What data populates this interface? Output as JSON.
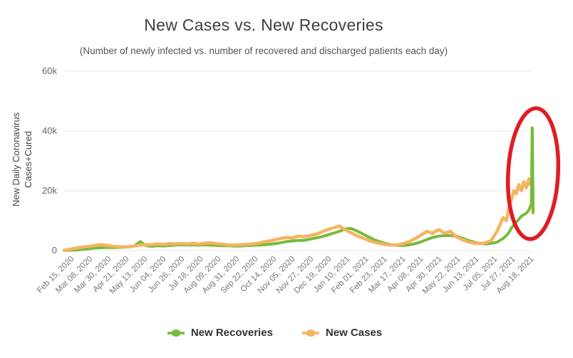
{
  "header": {
    "title": "New Cases vs. New Recoveries",
    "subtitle": "(Number of newly infected vs. number of recovered and discharged patients each day)"
  },
  "y_axis": {
    "title_lines": [
      "New Daily Coronavirus",
      "Cases+Cured"
    ],
    "tick_labels": [
      "60k",
      "40k",
      "20k",
      "0"
    ],
    "tick_values": [
      60000,
      40000,
      20000,
      0
    ]
  },
  "x_axis": {
    "tick_labels": [
      "Feb 15, 2020",
      "Mar 08, 2020",
      "Mar 30, 2020",
      "Apr 21, 2020",
      "May 13, 2020",
      "Jun 04, 2020",
      "Jun 26, 2020",
      "Jul 18, 2020",
      "Aug 09, 2020",
      "Aug 31, 2020",
      "Sep 22, 2020",
      "Oct 14, 2020",
      "Nov 05, 2020",
      "Nov 27, 2020",
      "Dec 19, 2020",
      "Jan 10, 2021",
      "Feb 01, 2021",
      "Feb 23, 2021",
      "Mar 17, 2021",
      "Apr 08, 2021",
      "Apr 30, 2021",
      "May 22, 2021",
      "Jun 13, 2021",
      "Jul 05, 2021",
      "Jul 27, 2021",
      "Aug 18, 2021"
    ]
  },
  "legend": {
    "items": [
      {
        "label": "New Recoveries",
        "color": "#77bb3a"
      },
      {
        "label": "New Cases",
        "color": "#f4b45f"
      }
    ]
  },
  "annotation": {
    "type": "ellipse",
    "color": "#e01c24",
    "highlights": "Sharp end-of-August 2021 surge: cases near 24k and a one-day recoveries spike to about 41k"
  },
  "colors": {
    "recoveries": "#77bb3a",
    "cases": "#f4b45f",
    "grid": "#e6e6e6",
    "annotation_red": "#e01c24"
  },
  "chart_data": {
    "type": "line",
    "title": "New Cases vs. New Recoveries",
    "subtitle": "(Number of newly infected vs. number of recovered and discharged patients each day)",
    "ylabel": "New Daily Coronavirus Cases+Cured",
    "xlabel": "",
    "ylim": [
      0,
      60000
    ],
    "grid": true,
    "legend_position": "bottom",
    "x": [
      "2020-02-15",
      "2020-02-22",
      "2020-02-29",
      "2020-03-07",
      "2020-03-14",
      "2020-03-21",
      "2020-03-28",
      "2020-04-04",
      "2020-04-11",
      "2020-04-18",
      "2020-04-25",
      "2020-05-02",
      "2020-05-09",
      "2020-05-16",
      "2020-05-23",
      "2020-05-30",
      "2020-06-06",
      "2020-06-13",
      "2020-06-20",
      "2020-06-27",
      "2020-07-04",
      "2020-07-11",
      "2020-07-18",
      "2020-07-25",
      "2020-08-01",
      "2020-08-08",
      "2020-08-15",
      "2020-08-22",
      "2020-08-29",
      "2020-09-05",
      "2020-09-12",
      "2020-09-19",
      "2020-09-26",
      "2020-10-03",
      "2020-10-10",
      "2020-10-17",
      "2020-10-24",
      "2020-10-31",
      "2020-11-07",
      "2020-11-14",
      "2020-11-21",
      "2020-11-28",
      "2020-12-05",
      "2020-12-12",
      "2020-12-19",
      "2020-12-26",
      "2021-01-02",
      "2021-01-09",
      "2021-01-16",
      "2021-01-23",
      "2021-01-30",
      "2021-02-06",
      "2021-02-13",
      "2021-02-20",
      "2021-02-27",
      "2021-03-06",
      "2021-03-13",
      "2021-03-20",
      "2021-03-27",
      "2021-04-03",
      "2021-04-10",
      "2021-04-17",
      "2021-04-24",
      "2021-05-01",
      "2021-05-08",
      "2021-05-15",
      "2021-05-22",
      "2021-05-29",
      "2021-06-05",
      "2021-06-12",
      "2021-06-19",
      "2021-06-26",
      "2021-07-03",
      "2021-07-10",
      "2021-07-17",
      "2021-07-24",
      "2021-07-28",
      "2021-07-31",
      "2021-08-03",
      "2021-08-06",
      "2021-08-09",
      "2021-08-12",
      "2021-08-15",
      "2021-08-18",
      "2021-08-21",
      "2021-08-24",
      "2021-08-26",
      "2021-08-27",
      "2021-08-28",
      "2021-08-29"
    ],
    "series": [
      {
        "name": "New Recoveries",
        "color": "#77bb3a",
        "values": [
          20,
          100,
          200,
          350,
          500,
          800,
          900,
          1000,
          1000,
          1000,
          1100,
          1200,
          1500,
          3000,
          1600,
          1400,
          1600,
          1500,
          1700,
          1800,
          1900,
          1800,
          1900,
          1800,
          1900,
          1800,
          1700,
          1600,
          1600,
          1500,
          1500,
          1600,
          1700,
          1800,
          1900,
          2100,
          2300,
          2600,
          3000,
          3200,
          3400,
          3400,
          3800,
          4200,
          4600,
          5200,
          5800,
          6400,
          7200,
          7400,
          6600,
          5600,
          4600,
          3600,
          2900,
          2300,
          1900,
          1700,
          1700,
          1900,
          2300,
          2900,
          3700,
          4400,
          4800,
          5000,
          5000,
          4800,
          4200,
          3400,
          2800,
          2400,
          2200,
          2400,
          2800,
          4000,
          5000,
          6000,
          7500,
          8500,
          9500,
          10500,
          11500,
          12000,
          12500,
          13500,
          15000,
          15500,
          41000,
          13000
        ]
      },
      {
        "name": "New Cases",
        "color": "#f4b45f",
        "values": [
          100,
          400,
          800,
          1100,
          1300,
          1600,
          2000,
          1800,
          1500,
          1300,
          1200,
          1300,
          1500,
          1800,
          1900,
          2000,
          2200,
          2000,
          2300,
          2200,
          2300,
          2200,
          2400,
          2200,
          2400,
          2600,
          2300,
          2100,
          1900,
          1800,
          1900,
          2000,
          2200,
          2400,
          2800,
          3200,
          3600,
          4000,
          4400,
          4200,
          4800,
          4600,
          5000,
          5400,
          6200,
          7000,
          7600,
          8200,
          7000,
          6000,
          5000,
          4200,
          3400,
          2800,
          2300,
          2000,
          1800,
          1900,
          2300,
          3000,
          4000,
          5200,
          6400,
          5800,
          7000,
          5800,
          6400,
          4600,
          3700,
          2900,
          2500,
          2300,
          2600,
          3400,
          6500,
          11000,
          10000,
          14000,
          17000,
          20000,
          19000,
          22000,
          20000,
          23000,
          21000,
          24000,
          22000,
          23500,
          21000,
          12500
        ]
      }
    ],
    "end_spike": {
      "date": "2021-08-28",
      "series": "New Recoveries",
      "value": 41000
    }
  }
}
